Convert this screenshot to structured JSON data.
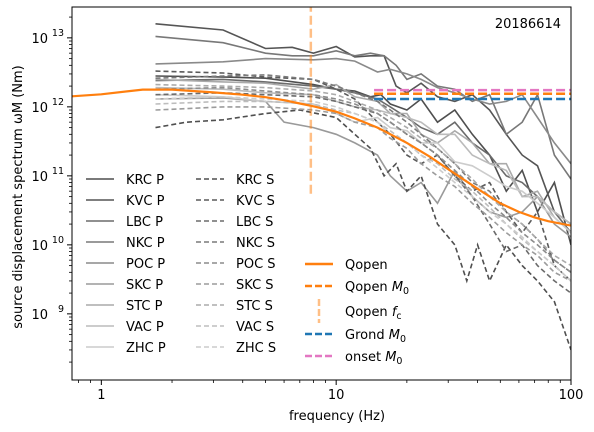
{
  "chart_data": {
    "type": "line",
    "event_id": "20186614",
    "xlabel": "frequency (Hz)",
    "ylabel": "source displacement spectrum ωM (Nm)",
    "xscale": "log",
    "yscale": "log",
    "xlim": [
      0.75,
      100
    ],
    "ylim": [
      110000000.0,
      28000000000000.0
    ],
    "x_ticks": [
      {
        "value": 1,
        "label": "1"
      },
      {
        "value": 10,
        "label": "10"
      },
      {
        "value": 100,
        "label": "100"
      }
    ],
    "y_ticks": [
      {
        "value": 1000000000.0,
        "base": "10",
        "exp": "9"
      },
      {
        "value": 10000000000.0,
        "base": "10",
        "exp": "10"
      },
      {
        "value": 100000000000.0,
        "base": "10",
        "exp": "11"
      },
      {
        "value": 1000000000000.0,
        "base": "10",
        "exp": "12"
      },
      {
        "value": 10000000000000.0,
        "base": "10",
        "exp": "13"
      }
    ],
    "colors": {
      "qopen": "#ff7f0e",
      "grond": "#1f77b4",
      "onset": "#e377c2"
    },
    "station_series": [
      {
        "name": "KRC P",
        "phase": "P",
        "color": "#4f4f4f",
        "x": [
          1.7,
          3.4,
          5,
          8,
          10,
          12,
          14,
          15.5,
          17,
          20,
          23,
          27,
          32,
          38,
          45,
          53,
          62,
          72,
          85,
          100
        ],
        "y": [
          2800000000000.0,
          2700000000000.0,
          2600000000000.0,
          2100000000000.0,
          1800000000000.0,
          1700000000000.0,
          1400000000000.0,
          1500000000000.0,
          1100000000000.0,
          900000000000.0,
          1300000000000.0,
          600000000000.0,
          900000000000.0,
          400000000000.0,
          200000000000.0,
          60000000000.0,
          120000000000.0,
          30000000000.0,
          80000000000.0,
          10000000000.0
        ]
      },
      {
        "name": "KVC P",
        "phase": "P",
        "color": "#555555",
        "x": [
          1.7,
          3.3,
          5,
          6.5,
          8,
          10,
          12,
          14,
          16,
          18,
          20,
          23,
          27,
          32,
          38,
          45,
          53,
          62,
          72,
          85,
          100
        ],
        "y": [
          16000000000000.0,
          13000000000000.0,
          7000000000000.0,
          7300000000000.0,
          6000000000000.0,
          7500000000000.0,
          5300000000000.0,
          5500000000000.0,
          5500000000000.0,
          2000000000000.0,
          1600000000000.0,
          2200000000000.0,
          1400000000000.0,
          1200000000000.0,
          1500000000000.0,
          900000000000.0,
          400000000000.0,
          200000000000.0,
          140000000000.0,
          30000000000.0,
          20000000000.0
        ]
      },
      {
        "name": "LBC P",
        "phase": "P",
        "color": "#6b6b6b",
        "x": [
          1.7,
          3.3,
          5,
          8,
          10,
          12,
          15,
          17,
          20,
          23,
          27,
          32,
          38,
          45,
          53,
          62,
          72,
          85,
          100
        ],
        "y": [
          2400000000000.0,
          2500000000000.0,
          2300000000000.0,
          2000000000000.0,
          1800000000000.0,
          1600000000000.0,
          1300000000000.0,
          1000000000000.0,
          700000000000.0,
          500000000000.0,
          400000000000.0,
          600000000000.0,
          300000000000.0,
          200000000000.0,
          100000000000.0,
          80000000000.0,
          50000000000.0,
          30000000000.0,
          15000000000.0
        ]
      },
      {
        "name": "NKC P",
        "phase": "P",
        "color": "#787878",
        "x": [
          1.7,
          3.3,
          5,
          6.5,
          8,
          10,
          12,
          14,
          16,
          18,
          20,
          23,
          27,
          32,
          38,
          45,
          53,
          62,
          72,
          85,
          100
        ],
        "y": [
          10500000000000.0,
          8500000000000.0,
          6000000000000.0,
          5500000000000.0,
          5500000000000.0,
          6500000000000.0,
          5500000000000.0,
          6000000000000.0,
          5500000000000.0,
          4000000000000.0,
          2500000000000.0,
          3000000000000.0,
          2000000000000.0,
          1800000000000.0,
          1200000000000.0,
          1500000000000.0,
          400000000000.0,
          600000000000.0,
          1500000000000.0,
          200000000000.0,
          90000000000.0
        ]
      },
      {
        "name": "POC P",
        "phase": "P",
        "color": "#8a8a8a",
        "x": [
          1.7,
          3.3,
          5,
          8,
          10,
          12,
          15,
          17,
          20,
          23,
          27,
          32,
          38,
          45,
          53,
          62,
          72,
          85,
          100
        ],
        "y": [
          4200000000000.0,
          4500000000000.0,
          5000000000000.0,
          4800000000000.0,
          5000000000000.0,
          4600000000000.0,
          3200000000000.0,
          3500000000000.0,
          3000000000000.0,
          2500000000000.0,
          1900000000000.0,
          1600000000000.0,
          1300000000000.0,
          1100000000000.0,
          1200000000000.0,
          1500000000000.0,
          700000000000.0,
          300000000000.0,
          150000000000.0
        ]
      },
      {
        "name": "SKC P",
        "phase": "P",
        "color": "#9a9a9a",
        "x": [
          1.7,
          3.3,
          5,
          6,
          8,
          10,
          12,
          15,
          17,
          20,
          23,
          27,
          32,
          38,
          45,
          53,
          62,
          72,
          85,
          100
        ],
        "y": [
          1300000000000.0,
          1350000000000.0,
          1200000000000.0,
          600000000000.0,
          500000000000.0,
          400000000000.0,
          300000000000.0,
          200000000000.0,
          100000000000.0,
          60000000000.0,
          80000000000.0,
          40000000000.0,
          120000000000.0,
          50000000000.0,
          30000000000.0,
          25000000000.0,
          30000000000.0,
          50000000000.0,
          20000000000.0,
          13000000000.0
        ]
      },
      {
        "name": "STC P",
        "phase": "P",
        "color": "#aaaaaa",
        "x": [
          1.7,
          3.3,
          5,
          8,
          10,
          12,
          15,
          17,
          20,
          23,
          27,
          32,
          38,
          45,
          53,
          62,
          72,
          85,
          100
        ],
        "y": [
          2500000000000.0,
          2300000000000.0,
          2200000000000.0,
          1800000000000.0,
          2100000000000.0,
          1400000000000.0,
          1200000000000.0,
          800000000000.0,
          800000000000.0,
          400000000000.0,
          300000000000.0,
          450000000000.0,
          300000000000.0,
          150000000000.0,
          150000000000.0,
          50000000000.0,
          60000000000.0,
          25000000000.0,
          15000000000.0
        ]
      },
      {
        "name": "VAC P",
        "phase": "P",
        "color": "#bbbbbb",
        "x": [
          1.7,
          3.3,
          5,
          8,
          10,
          12,
          15,
          17,
          20,
          23,
          27,
          32,
          38,
          45,
          53,
          62,
          72,
          85,
          100
        ],
        "y": [
          1900000000000.0,
          1800000000000.0,
          1600000000000.0,
          1500000000000.0,
          1200000000000.0,
          1000000000000.0,
          900000000000.0,
          800000000000.0,
          700000000000.0,
          600000000000.0,
          400000000000.0,
          400000000000.0,
          200000000000.0,
          150000000000.0,
          120000000000.0,
          50000000000.0,
          50000000000.0,
          30000000000.0,
          20000000000.0
        ]
      },
      {
        "name": "ZHC P",
        "phase": "P",
        "color": "#cccccc",
        "x": [
          1.7,
          3.3,
          5,
          8,
          10,
          12,
          15,
          17,
          20,
          23,
          27,
          32,
          38,
          45,
          53,
          62,
          72,
          85,
          100
        ],
        "y": [
          1500000000000.0,
          1400000000000.0,
          1200000000000.0,
          1100000000000.0,
          800000000000.0,
          600000000000.0,
          700000000000.0,
          500000000000.0,
          450000000000.0,
          300000000000.0,
          300000000000.0,
          160000000000.0,
          140000000000.0,
          100000000000.0,
          70000000000.0,
          60000000000.0,
          40000000000.0,
          25000000000.0,
          15000000000.0
        ]
      },
      {
        "name": "KRC S",
        "phase": "S",
        "color": "#4f4f4f",
        "x": [
          1.7,
          2.3,
          3.3,
          5,
          7,
          10,
          12,
          14,
          16,
          18,
          20,
          23,
          27,
          32,
          36,
          40,
          45,
          53,
          62,
          72,
          85,
          100
        ],
        "y": [
          500000000000.0,
          600000000000.0,
          650000000000.0,
          800000000000.0,
          900000000000.0,
          700000000000.0,
          400000000000.0,
          250000000000.0,
          100000000000.0,
          150000000000.0,
          60000000000.0,
          100000000000.0,
          20000000000.0,
          10000000000.0,
          3000000000.0,
          10000000000.0,
          3000000000.0,
          10000000000.0,
          5000000000.0,
          3000000000.0,
          1500000000.0,
          300000000.0
        ]
      },
      {
        "name": "KVC S",
        "phase": "S",
        "color": "#5a5a5a",
        "x": [
          1.7,
          3.3,
          5,
          8,
          10,
          12,
          15,
          17,
          20,
          23,
          27,
          32,
          38,
          45,
          53,
          62,
          72,
          85,
          100
        ],
        "y": [
          3300000000000.0,
          3100000000000.0,
          2700000000000.0,
          2500000000000.0,
          1800000000000.0,
          1300000000000.0,
          600000000000.0,
          400000000000.0,
          200000000000.0,
          150000000000.0,
          200000000000.0,
          100000000000.0,
          60000000000.0,
          80000000000.0,
          30000000000.0,
          15000000000.0,
          30000000000.0,
          5000000000.0,
          3000000000.0
        ]
      },
      {
        "name": "LBC S",
        "phase": "S",
        "color": "#6b6b6b",
        "x": [
          1.7,
          3.3,
          5,
          8,
          10,
          12,
          15,
          17,
          20,
          23,
          27,
          32,
          38,
          45,
          53,
          62,
          72,
          85,
          100
        ],
        "y": [
          1500000000000.0,
          1600000000000.0,
          1500000000000.0,
          1400000000000.0,
          1200000000000.0,
          1000000000000.0,
          800000000000.0,
          600000000000.0,
          400000000000.0,
          300000000000.0,
          200000000000.0,
          100000000000.0,
          50000000000.0,
          20000000000.0,
          8000000000.0,
          10000000000.0,
          5000000000.0,
          3000000000.0,
          2000000000.0
        ]
      },
      {
        "name": "NKC S",
        "phase": "S",
        "color": "#7a7a7a",
        "x": [
          1.7,
          3.3,
          5,
          8,
          10,
          12,
          15,
          17,
          20,
          23,
          27,
          32,
          38,
          45,
          53,
          62,
          72,
          85,
          100
        ],
        "y": [
          2600000000000.0,
          2800000000000.0,
          2900000000000.0,
          2500000000000.0,
          2000000000000.0,
          1600000000000.0,
          1200000000000.0,
          900000000000.0,
          600000000000.0,
          400000000000.0,
          250000000000.0,
          150000000000.0,
          80000000000.0,
          60000000000.0,
          30000000000.0,
          20000000000.0,
          12000000000.0,
          6000000000.0,
          4000000000.0
        ]
      },
      {
        "name": "POC S",
        "phase": "S",
        "color": "#8c8c8c",
        "x": [
          1.7,
          3.3,
          5,
          8,
          10,
          12,
          15,
          17,
          20,
          23,
          27,
          32,
          38,
          45,
          53,
          62,
          72,
          85,
          100
        ],
        "y": [
          1800000000000.0,
          1900000000000.0,
          1700000000000.0,
          1500000000000.0,
          1300000000000.0,
          1100000000000.0,
          800000000000.0,
          600000000000.0,
          400000000000.0,
          300000000000.0,
          200000000000.0,
          120000000000.0,
          70000000000.0,
          40000000000.0,
          25000000000.0,
          15000000000.0,
          10000000000.0,
          6000000000.0,
          4000000000.0
        ]
      },
      {
        "name": "SKC S",
        "phase": "S",
        "color": "#9c9c9c",
        "x": [
          1.7,
          3.3,
          5,
          8,
          10,
          12,
          15,
          17,
          20,
          23,
          27,
          32,
          38,
          45,
          53,
          62,
          72,
          85,
          100
        ],
        "y": [
          900000000000.0,
          1000000000000.0,
          1000000000000.0,
          900000000000.0,
          800000000000.0,
          600000000000.0,
          500000000000.0,
          350000000000.0,
          250000000000.0,
          150000000000.0,
          100000000000.0,
          70000000000.0,
          40000000000.0,
          25000000000.0,
          15000000000.0,
          10000000000.0,
          7000000000.0,
          4000000000.0,
          3000000000.0
        ]
      },
      {
        "name": "STC S",
        "phase": "S",
        "color": "#ababab",
        "x": [
          1.7,
          3.3,
          5,
          8,
          10,
          12,
          15,
          17,
          20,
          23,
          27,
          32,
          38,
          45,
          53,
          62,
          72,
          85,
          100
        ],
        "y": [
          2100000000000.0,
          2000000000000.0,
          1900000000000.0,
          1700000000000.0,
          1500000000000.0,
          1200000000000.0,
          900000000000.0,
          700000000000.0,
          500000000000.0,
          350000000000.0,
          250000000000.0,
          150000000000.0,
          90000000000.0,
          50000000000.0,
          30000000000.0,
          20000000000.0,
          12000000000.0,
          7000000000.0,
          5000000000.0
        ]
      },
      {
        "name": "VAC S",
        "phase": "S",
        "color": "#bdbdbd",
        "x": [
          1.7,
          3.3,
          5,
          8,
          10,
          12,
          15,
          17,
          20,
          23,
          27,
          32,
          38,
          45,
          53,
          62,
          72,
          85,
          100
        ],
        "y": [
          1100000000000.0,
          1200000000000.0,
          1200000000000.0,
          1100000000000.0,
          900000000000.0,
          800000000000.0,
          600000000000.0,
          450000000000.0,
          300000000000.0,
          200000000000.0,
          150000000000.0,
          90000000000.0,
          60000000000.0,
          35000000000.0,
          20000000000.0,
          12000000000.0,
          8000000000.0,
          5000000000.0,
          3000000000.0
        ]
      },
      {
        "name": "ZHC S",
        "phase": "S",
        "color": "#cccccc",
        "x": [
          1.7,
          3.3,
          5,
          8,
          10,
          12,
          15,
          17,
          20,
          23,
          27,
          32,
          38,
          45,
          53,
          62,
          72,
          85,
          100
        ],
        "y": [
          1300000000000.0,
          1400000000000.0,
          1300000000000.0,
          1200000000000.0,
          1000000000000.0,
          800000000000.0,
          600000000000.0,
          400000000000.0,
          300000000000.0,
          200000000000.0,
          130000000000.0,
          80000000000.0,
          50000000000.0,
          30000000000.0,
          20000000000.0,
          13000000000.0,
          8000000000.0,
          5000000000.0,
          3000000000.0
        ]
      }
    ],
    "qopen": {
      "name": "Qopen",
      "x": [
        0.75,
        1,
        1.5,
        2,
        3,
        4,
        5,
        6,
        7,
        8,
        10,
        12,
        15,
        20,
        25,
        30,
        40,
        50,
        60,
        70,
        80,
        100
      ],
      "y": [
        1420000000000.0,
        1520000000000.0,
        1780000000000.0,
        1780000000000.0,
        1620000000000.0,
        1500000000000.0,
        1380000000000.0,
        1250000000000.0,
        1120000000000.0,
        1020000000000.0,
        850000000000.0,
        680000000000.0,
        500000000000.0,
        300000000000.0,
        190000000000.0,
        125000000000.0,
        65000000000.0,
        40000000000.0,
        30000000000.0,
        25000000000.0,
        22000000000.0,
        19000000000.0
      ]
    },
    "qopen_m0": {
      "name": "Qopen M0",
      "label_base": "Qopen M",
      "label_sub": "0",
      "value": 1550000000000.0,
      "x_from": 14.5,
      "x_to": 100
    },
    "qopen_fc": {
      "name": "Qopen fc",
      "label_base": "Qopen f",
      "label_sub": "c",
      "value": 7.8,
      "y_from": 55000000000.0,
      "y_to": 28000000000000.0
    },
    "grond_m0": {
      "name": "Grond M0",
      "label_base": "Grond M",
      "label_sub": "0",
      "value": 1300000000000.0,
      "x_from": 14.5,
      "x_to": 100
    },
    "onset_m0": {
      "name": "onset M0",
      "label_base": "onset M",
      "label_sub": "0",
      "value": 1750000000000.0,
      "x_from": 14.5,
      "x_to": 100
    }
  }
}
